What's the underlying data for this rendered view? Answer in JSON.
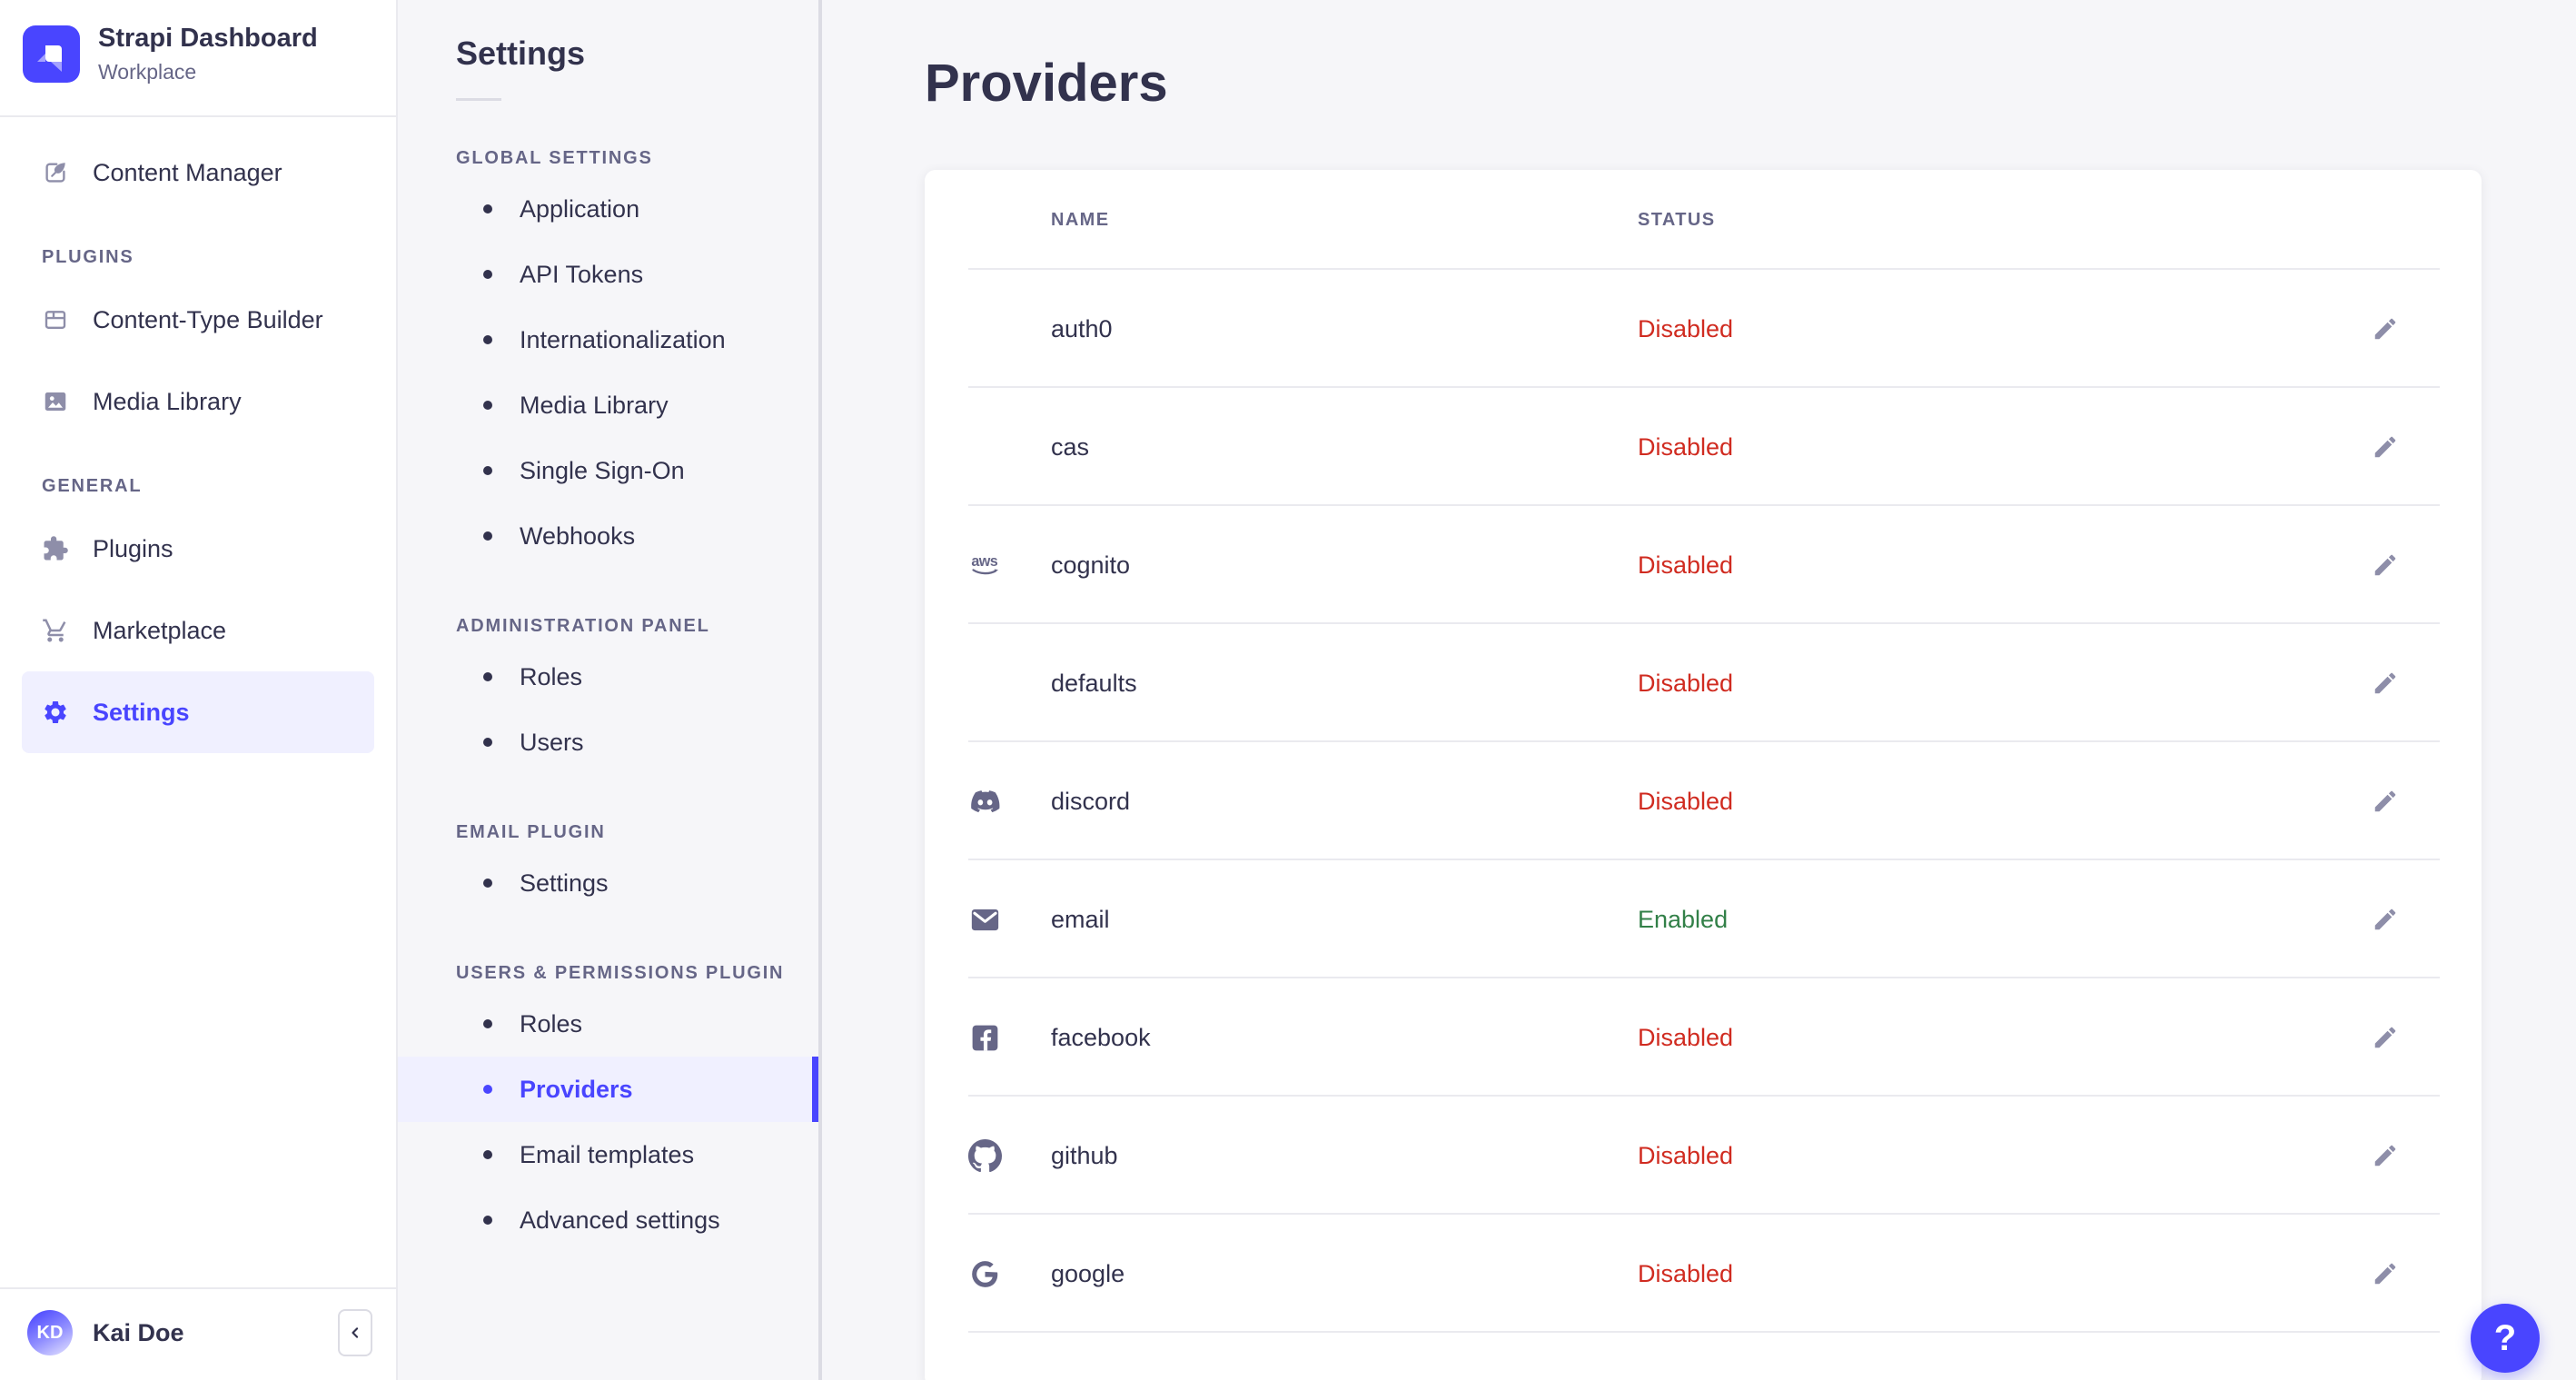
{
  "colors": {
    "primary": "#4945ff",
    "primary_light": "#f0f0ff",
    "danger": "#d02b20",
    "success": "#328048"
  },
  "brand": {
    "title": "Strapi Dashboard",
    "subtitle": "Workplace",
    "logo_icon": "strapi-logo-icon"
  },
  "main_nav": {
    "top_item": {
      "label": "Content Manager",
      "icon": "content-manager-icon"
    },
    "sections": [
      {
        "label": "PLUGINS",
        "items": [
          {
            "label": "Content-Type Builder",
            "icon": "content-type-builder-icon"
          },
          {
            "label": "Media Library",
            "icon": "media-library-icon"
          }
        ]
      },
      {
        "label": "GENERAL",
        "items": [
          {
            "label": "Plugins",
            "icon": "plugins-icon"
          },
          {
            "label": "Marketplace",
            "icon": "marketplace-icon"
          },
          {
            "label": "Settings",
            "icon": "settings-icon",
            "active": true
          }
        ]
      }
    ],
    "user": {
      "initials": "KD",
      "name": "Kai Doe"
    },
    "collapse_icon": "chevron-left-icon"
  },
  "settings_nav": {
    "title": "Settings",
    "active_item": "Providers",
    "sections": [
      {
        "label": "GLOBAL SETTINGS",
        "items": [
          "Application",
          "API Tokens",
          "Internationalization",
          "Media Library",
          "Single Sign-On",
          "Webhooks"
        ]
      },
      {
        "label": "ADMINISTRATION PANEL",
        "items": [
          "Roles",
          "Users"
        ]
      },
      {
        "label": "EMAIL PLUGIN",
        "items": [
          "Settings"
        ]
      },
      {
        "label": "USERS & PERMISSIONS PLUGIN",
        "items": [
          "Roles",
          "Providers",
          "Email templates",
          "Advanced settings"
        ]
      }
    ]
  },
  "page": {
    "title": "Providers"
  },
  "table": {
    "columns": [
      "NAME",
      "STATUS"
    ],
    "edit_icon": "pencil-icon",
    "rows": [
      {
        "name": "auth0",
        "icon": null,
        "status": "Disabled"
      },
      {
        "name": "cas",
        "icon": null,
        "status": "Disabled"
      },
      {
        "name": "cognito",
        "icon": "aws-icon",
        "status": "Disabled"
      },
      {
        "name": "defaults",
        "icon": null,
        "status": "Disabled"
      },
      {
        "name": "discord",
        "icon": "discord-icon",
        "status": "Disabled"
      },
      {
        "name": "email",
        "icon": "email-icon",
        "status": "Enabled"
      },
      {
        "name": "facebook",
        "icon": "facebook-icon",
        "status": "Disabled"
      },
      {
        "name": "github",
        "icon": "github-icon",
        "status": "Disabled"
      },
      {
        "name": "google",
        "icon": "google-icon",
        "status": "Disabled"
      }
    ]
  },
  "help": {
    "label": "?",
    "icon": "question-mark-icon"
  }
}
